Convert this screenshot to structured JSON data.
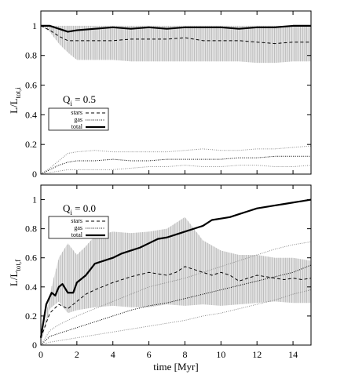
{
  "chart_data": [
    {
      "type": "line",
      "panel": "top",
      "annotation": {
        "main": "Q",
        "sub": "i",
        "rest": " = 0.5"
      },
      "ylabel": {
        "main": "L/L",
        "sub": "tot,i"
      },
      "xlim": [
        0,
        15
      ],
      "ylim": [
        0,
        1.1
      ],
      "xticks": [
        "0",
        "2",
        "4",
        "6",
        "8",
        "10",
        "12",
        "14"
      ],
      "yticks": [
        "0",
        "0.2",
        "0.4",
        "0.6",
        "0.8",
        "1"
      ],
      "legend": {
        "placement": "center-left",
        "entries": [
          "stars",
          "gas",
          "total"
        ]
      },
      "band": {
        "x": [
          0,
          0.5,
          1,
          1.5,
          2,
          3,
          4,
          5,
          6,
          7,
          8,
          9,
          10,
          11,
          12,
          13,
          14,
          15
        ],
        "lower": [
          1.0,
          0.96,
          0.88,
          0.82,
          0.77,
          0.77,
          0.77,
          0.76,
          0.76,
          0.76,
          0.76,
          0.76,
          0.76,
          0.76,
          0.75,
          0.75,
          0.76,
          0.76
        ],
        "upper": [
          1.0,
          1.0,
          1.0,
          1.0,
          1.0,
          1.0,
          1.0,
          1.0,
          1.0,
          1.0,
          1.0,
          1.0,
          1.0,
          1.0,
          1.0,
          1.0,
          1.0,
          1.0
        ]
      },
      "series": [
        {
          "name": "total",
          "style": "thick-solid",
          "x": [
            0,
            0.5,
            1,
            1.5,
            2,
            3,
            4,
            5,
            6,
            7,
            8,
            9,
            10,
            11,
            12,
            13,
            14,
            15
          ],
          "y": [
            1.0,
            1.0,
            0.98,
            0.96,
            0.97,
            0.98,
            0.99,
            0.98,
            0.99,
            0.98,
            0.99,
            0.99,
            0.99,
            0.98,
            0.99,
            0.99,
            1.0,
            1.0
          ]
        },
        {
          "name": "stars",
          "style": "dashed",
          "x": [
            0,
            0.5,
            1,
            1.5,
            2,
            3,
            4,
            5,
            6,
            7,
            8,
            9,
            10,
            11,
            12,
            13,
            14,
            15
          ],
          "y": [
            1.0,
            0.97,
            0.93,
            0.9,
            0.9,
            0.9,
            0.9,
            0.91,
            0.91,
            0.91,
            0.92,
            0.9,
            0.9,
            0.9,
            0.89,
            0.88,
            0.89,
            0.89
          ]
        },
        {
          "name": "gas",
          "style": "dotted",
          "x": [
            0,
            0.5,
            1,
            1.5,
            2,
            3,
            4,
            5,
            6,
            7,
            8,
            9,
            10,
            11,
            12,
            13,
            14,
            15
          ],
          "y": [
            0.0,
            0.03,
            0.06,
            0.08,
            0.09,
            0.09,
            0.1,
            0.09,
            0.09,
            0.1,
            0.1,
            0.1,
            0.1,
            0.11,
            0.11,
            0.12,
            0.12,
            0.12
          ]
        }
      ],
      "gray_series": [
        {
          "x": [
            0,
            0.5,
            1,
            1.5,
            2,
            3,
            4,
            5,
            6,
            7,
            8,
            9,
            10,
            11,
            12,
            13,
            14,
            15
          ],
          "y": [
            0.0,
            0.04,
            0.09,
            0.14,
            0.15,
            0.16,
            0.15,
            0.15,
            0.15,
            0.15,
            0.16,
            0.17,
            0.16,
            0.16,
            0.17,
            0.17,
            0.18,
            0.19
          ]
        },
        {
          "x": [
            0,
            0.5,
            1,
            1.5,
            2,
            3,
            4,
            5,
            6,
            7,
            8,
            9,
            10,
            11,
            12,
            13,
            14,
            15
          ],
          "y": [
            0.0,
            0.01,
            0.02,
            0.03,
            0.03,
            0.03,
            0.03,
            0.04,
            0.05,
            0.05,
            0.06,
            0.05,
            0.05,
            0.06,
            0.06,
            0.05,
            0.05,
            0.06
          ]
        }
      ]
    },
    {
      "type": "line",
      "panel": "bottom",
      "annotation": {
        "main": "Q",
        "sub": "i",
        "rest": " = 0.0"
      },
      "ylabel": {
        "main": "L/L",
        "sub": "tot,f"
      },
      "xlabel": "time [Myr]",
      "xlim": [
        0,
        15
      ],
      "ylim": [
        0,
        1.1
      ],
      "xticks": [
        "0",
        "2",
        "4",
        "6",
        "8",
        "10",
        "12",
        "14"
      ],
      "yticks": [
        "0",
        "0.2",
        "0.4",
        "0.6",
        "0.8",
        "1"
      ],
      "legend": {
        "placement": "top-left",
        "entries": [
          "stars",
          "gas",
          "total"
        ]
      },
      "band": {
        "x": [
          0,
          0.5,
          1,
          1.5,
          2,
          2.5,
          3,
          4,
          5,
          6,
          7,
          8,
          9,
          10,
          11,
          12,
          13,
          14,
          15
        ],
        "lower": [
          0.0,
          0.25,
          0.3,
          0.22,
          0.24,
          0.25,
          0.26,
          0.27,
          0.26,
          0.26,
          0.28,
          0.27,
          0.28,
          0.27,
          0.28,
          0.29,
          0.3,
          0.29,
          0.29
        ],
        "upper": [
          0.0,
          0.35,
          0.6,
          0.7,
          0.62,
          0.68,
          0.75,
          0.78,
          0.77,
          0.78,
          0.8,
          0.88,
          0.72,
          0.65,
          0.62,
          0.62,
          0.6,
          0.6,
          0.58
        ]
      },
      "series": [
        {
          "name": "total",
          "style": "thick-solid",
          "x": [
            0,
            0.3,
            0.6,
            0.8,
            1,
            1.2,
            1.5,
            1.8,
            2,
            2.5,
            3,
            3.5,
            4,
            4.5,
            5,
            5.5,
            6,
            6.5,
            7,
            7.5,
            8,
            8.5,
            9,
            9.5,
            10,
            10.5,
            11,
            11.5,
            12,
            12.5,
            13,
            13.5,
            14,
            14.5,
            15
          ],
          "y": [
            0.05,
            0.28,
            0.36,
            0.34,
            0.4,
            0.42,
            0.36,
            0.36,
            0.43,
            0.48,
            0.56,
            0.58,
            0.6,
            0.63,
            0.65,
            0.67,
            0.7,
            0.73,
            0.74,
            0.76,
            0.78,
            0.8,
            0.82,
            0.86,
            0.87,
            0.88,
            0.9,
            0.92,
            0.94,
            0.95,
            0.96,
            0.97,
            0.98,
            0.99,
            1.0
          ]
        },
        {
          "name": "stars",
          "style": "dashed",
          "x": [
            0,
            0.5,
            1,
            1.5,
            2,
            2.5,
            3,
            4,
            5,
            6,
            7,
            7.5,
            8,
            8.5,
            9,
            9.5,
            10,
            10.5,
            11,
            11.5,
            12,
            12.5,
            13,
            13.5,
            14,
            14.5,
            15
          ],
          "y": [
            0.05,
            0.22,
            0.28,
            0.25,
            0.3,
            0.35,
            0.38,
            0.43,
            0.47,
            0.5,
            0.48,
            0.5,
            0.54,
            0.52,
            0.5,
            0.48,
            0.5,
            0.48,
            0.44,
            0.46,
            0.48,
            0.47,
            0.46,
            0.45,
            0.46,
            0.45,
            0.46
          ]
        },
        {
          "name": "gas",
          "style": "dotted",
          "x": [
            0,
            0.5,
            1,
            2,
            3,
            4,
            5,
            6,
            7,
            8,
            9,
            10,
            11,
            12,
            13,
            14,
            15
          ],
          "y": [
            0.0,
            0.06,
            0.08,
            0.12,
            0.16,
            0.2,
            0.24,
            0.27,
            0.29,
            0.32,
            0.35,
            0.38,
            0.41,
            0.44,
            0.47,
            0.5,
            0.55
          ]
        }
      ],
      "gray_series": [
        {
          "x": [
            0,
            0.5,
            1,
            2,
            3,
            4,
            5,
            6,
            7,
            8,
            9,
            10,
            11,
            12,
            13,
            14,
            15
          ],
          "y": [
            0.0,
            0.1,
            0.14,
            0.2,
            0.25,
            0.3,
            0.35,
            0.4,
            0.43,
            0.46,
            0.5,
            0.54,
            0.58,
            0.62,
            0.66,
            0.69,
            0.71
          ]
        },
        {
          "x": [
            0,
            0.5,
            1,
            2,
            3,
            4,
            5,
            6,
            7,
            8,
            9,
            10,
            11,
            12,
            13,
            14,
            15
          ],
          "y": [
            0.0,
            0.02,
            0.03,
            0.05,
            0.07,
            0.09,
            0.11,
            0.13,
            0.15,
            0.17,
            0.2,
            0.22,
            0.25,
            0.28,
            0.31,
            0.35,
            0.38
          ]
        }
      ]
    }
  ]
}
